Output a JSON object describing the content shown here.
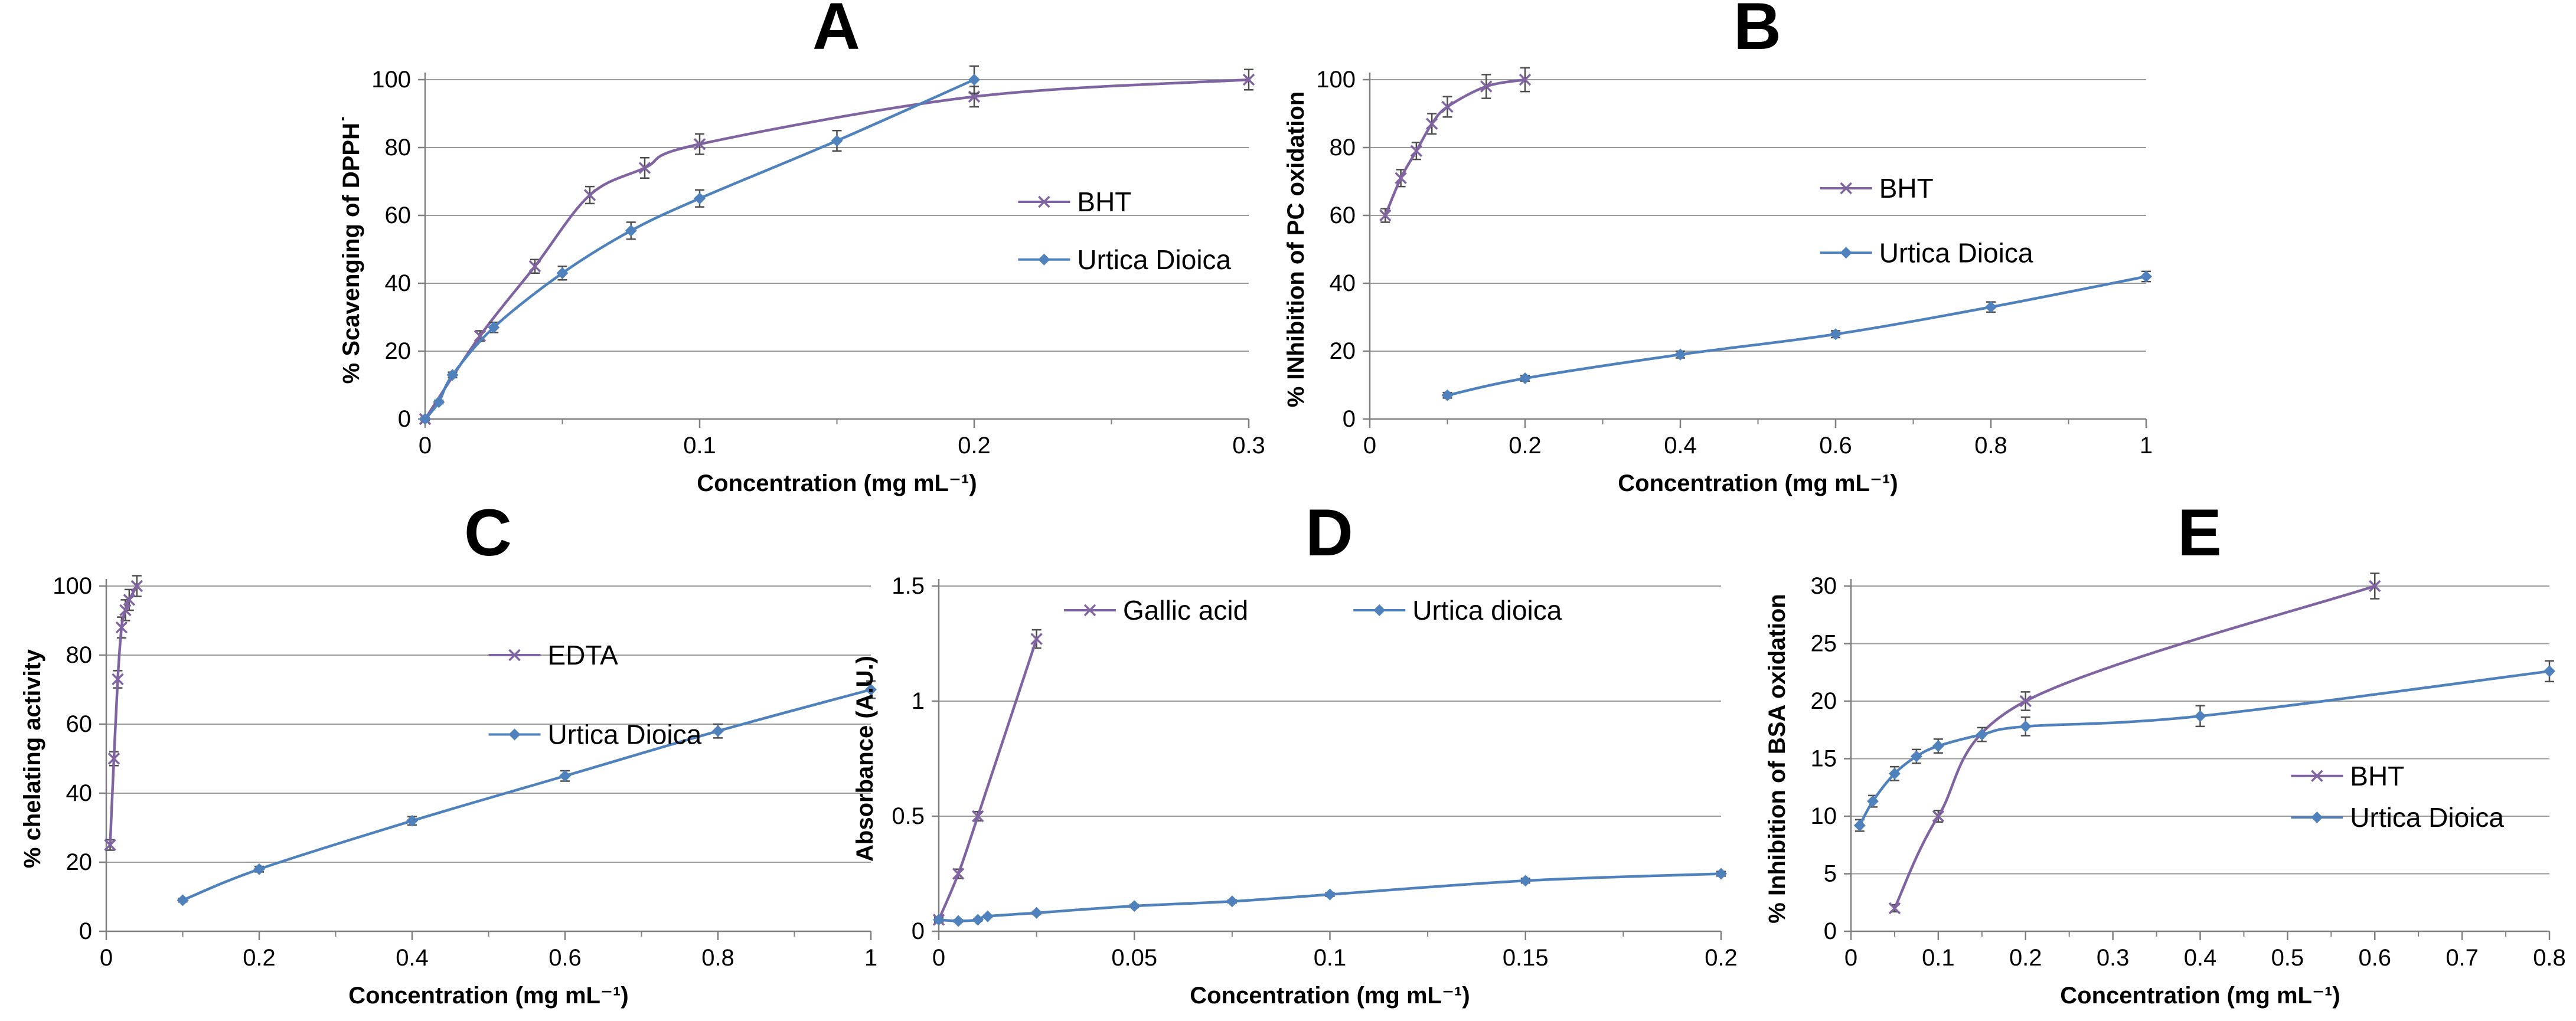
{
  "figure": {
    "background": "#ffffff",
    "text_color": "#000000",
    "grid_color": "#9a9a9a",
    "axis_color": "#7f7f7f",
    "error_bar_color": "#4d4d4d",
    "accent_purple": "#8064A2",
    "accent_blue": "#4F81BD"
  },
  "chart_data": [
    {
      "id": "A",
      "type": "line",
      "title": "A",
      "xlabel": "Concentration (mg mL⁻¹)",
      "ylabel": "% Scavenging of DPPH˙",
      "xlim": [
        0,
        0.3
      ],
      "ylim": [
        0,
        100
      ],
      "xticks": [
        0,
        0.1,
        0.2,
        0.3
      ],
      "yticks": [
        0,
        20,
        40,
        60,
        80,
        100
      ],
      "xminor": 0.05,
      "grid": "horizontal",
      "legend": {
        "x": 0.72,
        "y": [
          0.36,
          0.53
        ]
      },
      "series": [
        {
          "name": "BHT",
          "color": "#8064A2",
          "marker": "x",
          "x": [
            0,
            0.02,
            0.04,
            0.06,
            0.08,
            0.1,
            0.2,
            0.3
          ],
          "y": [
            0,
            24.5,
            45,
            66,
            74,
            81,
            95,
            100
          ],
          "err": [
            0,
            1.5,
            2,
            2.5,
            3,
            3,
            3,
            3
          ]
        },
        {
          "name": "Urtica Dioica",
          "color": "#4F81BD",
          "marker": "diamond",
          "x": [
            0,
            0.005,
            0.01,
            0.025,
            0.05,
            0.075,
            0.1,
            0.15,
            0.2
          ],
          "y": [
            0,
            5,
            13,
            27,
            43,
            55.5,
            65,
            82,
            100
          ],
          "err": [
            0.5,
            0.5,
            0.8,
            1.5,
            2,
            2.5,
            2.5,
            3,
            4
          ]
        }
      ]
    },
    {
      "id": "B",
      "type": "line",
      "title": "B",
      "xlabel": "Concentration (mg mL⁻¹)",
      "ylabel": "% INhibition of PC oxidation",
      "xlim": [
        0,
        1
      ],
      "ylim": [
        0,
        100
      ],
      "xticks": [
        0,
        0.2,
        0.4,
        0.6,
        0.8,
        1
      ],
      "yticks": [
        0,
        20,
        40,
        60,
        80,
        100
      ],
      "xminor": 0.1,
      "grid": "horizontal",
      "legend": {
        "x": 0.58,
        "y": [
          0.32,
          0.51
        ]
      },
      "series": [
        {
          "name": "BHT",
          "color": "#8064A2",
          "marker": "x",
          "x": [
            0.02,
            0.04,
            0.06,
            0.08,
            0.1,
            0.15,
            0.2
          ],
          "y": [
            60,
            71,
            79,
            87,
            92,
            98,
            100
          ],
          "err": [
            2,
            2.5,
            2.5,
            3,
            3,
            3.5,
            3.5
          ]
        },
        {
          "name": "Urtica Dioica",
          "color": "#4F81BD",
          "marker": "diamond",
          "x": [
            0.1,
            0.2,
            0.4,
            0.6,
            0.8,
            1
          ],
          "y": [
            7,
            12,
            19,
            25,
            33,
            42
          ],
          "err": [
            0.8,
            0.8,
            1,
            1,
            1.5,
            1.5
          ]
        }
      ]
    },
    {
      "id": "C",
      "type": "line",
      "title": "C",
      "xlabel": "Concentration (mg mL⁻¹)",
      "ylabel": "% chelating activity",
      "xlim": [
        0,
        1
      ],
      "ylim": [
        0,
        100
      ],
      "xticks": [
        0,
        0.2,
        0.4,
        0.6,
        0.8,
        1
      ],
      "yticks": [
        0,
        20,
        40,
        60,
        80,
        100
      ],
      "xminor": 0.1,
      "grid": "horizontal",
      "legend": {
        "x": 0.5,
        "y": [
          0.2,
          0.43
        ]
      },
      "series": [
        {
          "name": "EDTA",
          "color": "#8064A2",
          "marker": "x",
          "x": [
            0.005,
            0.01,
            0.015,
            0.02,
            0.025,
            0.03,
            0.04
          ],
          "y": [
            25,
            50,
            73,
            88,
            93,
            96,
            100
          ],
          "err": [
            1.5,
            2,
            2.5,
            3,
            3,
            3,
            3
          ]
        },
        {
          "name": "Urtica Dioica",
          "color": "#4F81BD",
          "marker": "diamond",
          "x": [
            0.1,
            0.2,
            0.4,
            0.6,
            0.8,
            1
          ],
          "y": [
            9,
            18,
            32,
            45,
            58,
            70
          ],
          "err": [
            0.5,
            0.8,
            1.2,
            1.5,
            2,
            2.5
          ]
        }
      ]
    },
    {
      "id": "D",
      "type": "line",
      "title": "D",
      "xlabel": "Concentration (mg mL⁻¹)",
      "ylabel": "Absorbance (A.U.)",
      "xlim": [
        0,
        0.2
      ],
      "ylim": [
        0,
        1.5
      ],
      "xticks": [
        0,
        0.05,
        0.1,
        0.15,
        0.2
      ],
      "yticks": [
        0,
        0.5,
        1,
        1.5
      ],
      "xminor": 0.025,
      "grid": "horizontal",
      "legend": {
        "x": [
          0.16,
          0.53
        ],
        "y": 0.07
      },
      "series": [
        {
          "name": "Gallic acid",
          "color": "#8064A2",
          "marker": "x",
          "x": [
            0,
            0.005,
            0.01,
            0.025
          ],
          "y": [
            0.05,
            0.25,
            0.5,
            1.27
          ],
          "err": [
            0.01,
            0.02,
            0.02,
            0.04
          ]
        },
        {
          "name": "Urtica dioica",
          "color": "#4F81BD",
          "marker": "diamond",
          "x": [
            0,
            0.005,
            0.01,
            0.0125,
            0.025,
            0.05,
            0.075,
            0.1,
            0.15,
            0.2
          ],
          "y": [
            0.05,
            0.045,
            0.05,
            0.065,
            0.08,
            0.11,
            0.13,
            0.16,
            0.22,
            0.25
          ],
          "err": [
            0.005,
            0.005,
            0.005,
            0.005,
            0.006,
            0.006,
            0.006,
            0.008,
            0.01,
            0.01
          ]
        }
      ]
    },
    {
      "id": "E",
      "type": "line",
      "title": "E",
      "xlabel": "Concentration (mg mL⁻¹)",
      "ylabel": "% Inhibition of BSA oxidation",
      "xlim": [
        0,
        0.8
      ],
      "ylim": [
        0,
        30
      ],
      "xticks": [
        0,
        0.1,
        0.2,
        0.3,
        0.4,
        0.5,
        0.6,
        0.7,
        0.8
      ],
      "yticks": [
        0,
        5,
        10,
        15,
        20,
        25,
        30
      ],
      "xminor": 0.05,
      "grid": "horizontal",
      "legend": {
        "x": 0.63,
        "y": [
          0.55,
          0.67
        ]
      },
      "series": [
        {
          "name": "BHT",
          "color": "#8064A2",
          "marker": "x",
          "x": [
            0.05,
            0.1,
            0.2,
            0.6
          ],
          "y": [
            2,
            10,
            20,
            30
          ],
          "err": [
            0.3,
            0.5,
            0.8,
            1.1
          ]
        },
        {
          "name": "Urtica Dioica",
          "color": "#4F81BD",
          "marker": "diamond",
          "x": [
            0.01,
            0.025,
            0.05,
            0.075,
            0.1,
            0.15,
            0.2,
            0.4,
            0.8
          ],
          "y": [
            9.2,
            11.3,
            13.7,
            15.2,
            16.1,
            17.1,
            17.8,
            18.7,
            22.6
          ],
          "err": [
            0.5,
            0.5,
            0.6,
            0.6,
            0.6,
            0.6,
            0.8,
            0.9,
            0.9
          ]
        }
      ]
    }
  ]
}
